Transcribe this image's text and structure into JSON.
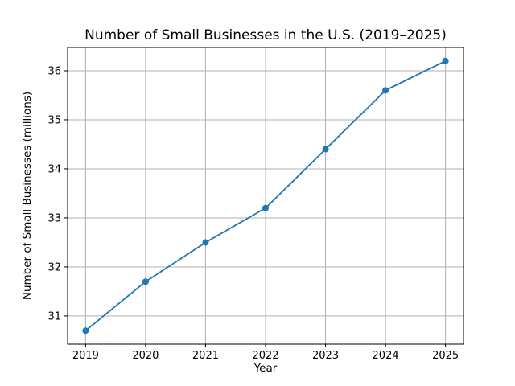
{
  "chart_data": {
    "type": "line",
    "title": "Number of Small Businesses in the U.S. (2019–2025)",
    "xlabel": "Year",
    "ylabel": "Number of Small Businesses (millions)",
    "x": [
      2019,
      2020,
      2021,
      2022,
      2023,
      2024,
      2025
    ],
    "series": [
      {
        "name": "Number of Small Businesses (millions)",
        "values": [
          30.7,
          31.7,
          32.5,
          33.2,
          34.4,
          35.6,
          36.2
        ]
      }
    ],
    "xticks": [
      2019,
      2020,
      2021,
      2022,
      2023,
      2024,
      2025
    ],
    "yticks": [
      31,
      32,
      33,
      34,
      35,
      36
    ],
    "xlim": [
      2018.7,
      2025.3
    ],
    "ylim": [
      30.425,
      36.475
    ],
    "grid": true,
    "legend": "none",
    "colors": {
      "line": "#1f77b4",
      "marker": "#1f77b4",
      "grid": "#b0b0b0",
      "spine": "#000000",
      "background": "#ffffff"
    },
    "marker": "circle",
    "marker_radius": 4,
    "line_width": 1.8
  }
}
